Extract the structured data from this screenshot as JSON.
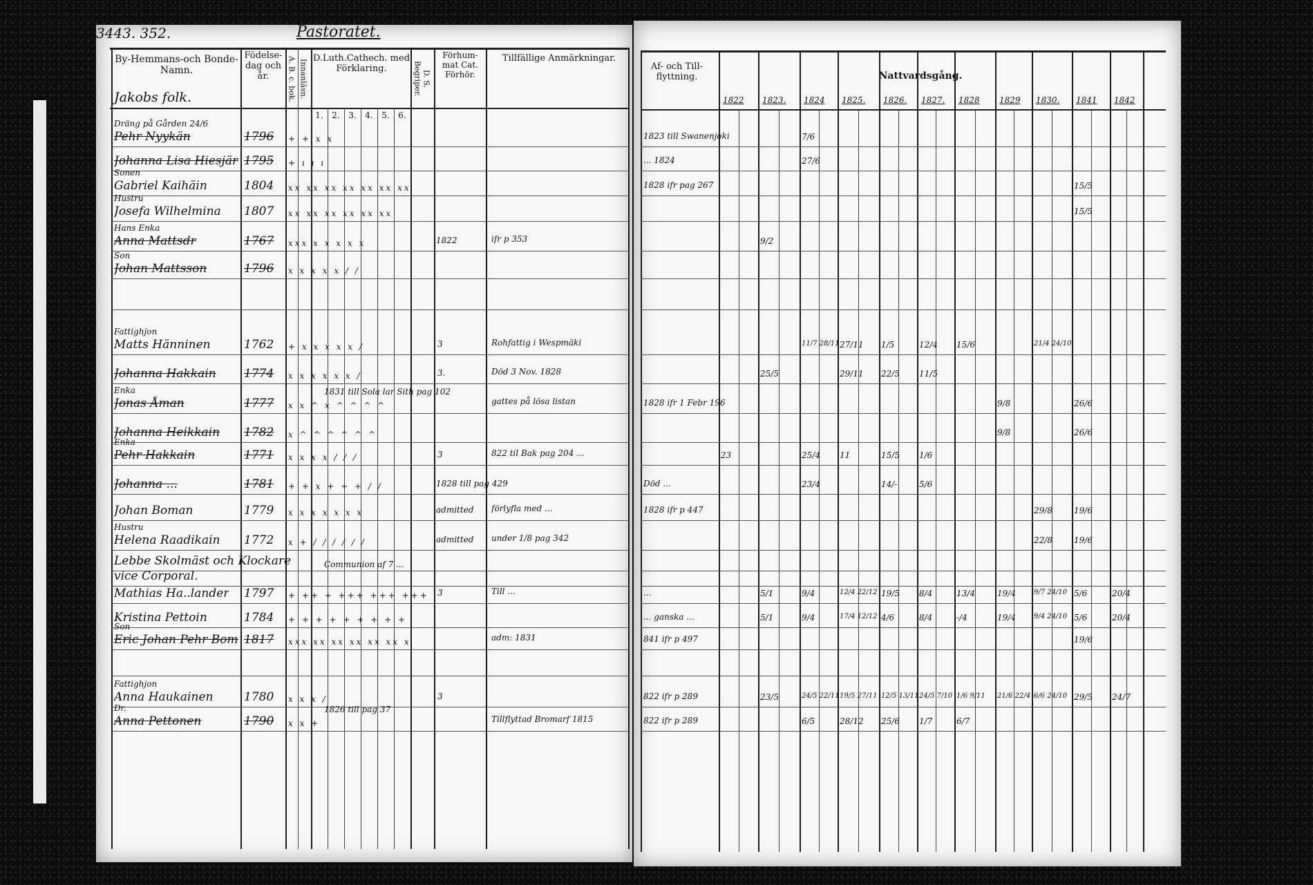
{
  "left_page": {
    "page_number": "3443. 352.",
    "title": "Pastoratet.",
    "headers": {
      "name": "By-Hemmans-och Bonde-Namn.",
      "birth": "Födelse-dag och år.",
      "abc_book": "A. B. c. bok.",
      "reading": "Innanläsn.",
      "catechism": "D.Luth.Cathech. med Förklaring.",
      "catechism_parts": [
        "1.",
        "2.",
        "3.",
        "4.",
        "5.",
        "6."
      ],
      "ds": "D. S. Begriper.",
      "hearing": "Förhum-mat Cat. Förhör.",
      "remarks": "Tillfällige Anmärkningar."
    },
    "household": "Jakobs folk.",
    "rows": [
      {
        "note_above": "Dräng på Gården 24/6",
        "name": "Pehr Nyykän",
        "year": "1796",
        "marks": "+ + x x",
        "struck": true
      },
      {
        "name": "Johanna Lisa Hiesjärvi",
        "year": "1795",
        "marks": "+ ı ı ı",
        "struck": true
      },
      {
        "note_above": "Sonen",
        "name": "Gabriel Kaihäin",
        "year": "1804",
        "marks": "xx xx xx xx xx xx xx"
      },
      {
        "note_above": "Hustru",
        "name": "Josefa Wilhelmina",
        "year": "1807",
        "marks": "xx xx xx xx xx xx"
      },
      {
        "note_above": "Hans Enka",
        "name": "Anna Mattsdr",
        "year": "1767",
        "marks": "xxx x x x x x",
        "hearing": "1822",
        "remark": "ifr p 353",
        "struck": true
      },
      {
        "note_above": "Son",
        "name": "Johan Mattsson",
        "year": "1796",
        "marks": "x x x x x / /",
        "struck": true
      },
      {
        "name": ""
      },
      {
        "note_above": "Fattighjon",
        "name": "Matts Hänninen",
        "year": "1762",
        "marks": "+ x x x x x /",
        "hearing": "3",
        "remark": "Rohfattig i Wespmäki"
      },
      {
        "name": "Johanna Hakkain",
        "year": "1774",
        "marks": "x x x x x x /",
        "hearing": "3.",
        "remark": "Död 3 Nov. 1828",
        "struck": true
      },
      {
        "note_above": "Enka",
        "name": "Jonas Åman",
        "year": "1777",
        "marks": "x x ^ x ^ ^ ^ ^",
        "catechism_note": "1831 till Sola lar Sith pag 102",
        "remark": "gattes på lösa listan",
        "struck": true
      },
      {
        "name": "Johanna Heikkain",
        "year": "1782",
        "marks": "x ^ ^ ^ ^ ^ ^",
        "struck": true
      },
      {
        "note_above": "Enka",
        "name": "Pehr Hakkain",
        "year": "1771",
        "marks": "x x x x / / /",
        "hearing": "3",
        "remark": "822 til Bak pag 204 ...",
        "struck": true
      },
      {
        "name": "Johanna ...",
        "year": "1781",
        "marks": "+ + x + + + / /",
        "hearing": "1828 till pag 429",
        "struck": true
      },
      {
        "name": "Johan Boman",
        "year": "1779",
        "marks": "x x x x x x x",
        "hearing": "admitted",
        "remark": "förlyfla med ..."
      },
      {
        "note_above": "Hustru",
        "name": "Helena Raadikain",
        "year": "1772",
        "marks": "x + / / / / / /",
        "hearing": "admitted",
        "remark": "under 1/8 pag 342"
      },
      {
        "name": "Lebbe Skolmäst och Klockare"
      },
      {
        "name": "vice Corporal.",
        "catechism_note": "Communion af 7 ..."
      },
      {
        "name": "Mathias Ha..lander",
        "year": "1797",
        "marks": "+ ++ + +++ +++ +++",
        "hearing": "3",
        "remark": "Till ..."
      },
      {
        "name": "Kristina Pettoin",
        "year": "1784",
        "marks": "+ + + + + + + + +"
      },
      {
        "note_above": "Son",
        "name": "Eric Johan Pehr Boman",
        "year": "1817",
        "marks": "xxx xx xx xx xx xx x",
        "remark": "adm: 1831",
        "struck": true
      },
      {
        "name": ""
      },
      {
        "note_above": "Fattighjon",
        "name": "Anna Haukainen",
        "year": "1780",
        "marks": "x x x /",
        "hearing": "3"
      },
      {
        "note_above": "Dr.",
        "name": "Anna Pettonen",
        "year": "1790",
        "marks": "x x +",
        "catechism_note": "1826 till pag 37",
        "remark": "Tillflyttad Bromarf 1815",
        "struck": true
      }
    ]
  },
  "right_page": {
    "headers": {
      "moving": "Af- och Till-flyttning.",
      "communion": "Nattvardsgång.",
      "years": [
        "1822",
        "1823.",
        "1824",
        "1825.",
        "1826.",
        "1827.",
        "1828",
        "1829",
        "1830.",
        "1841",
        "1842"
      ]
    },
    "rows": [
      {
        "moving": "1823 till Swanenjoki",
        "communion": [
          "",
          "",
          "7/6",
          "",
          "",
          "",
          "",
          "",
          "",
          "",
          ""
        ]
      },
      {
        "moving": "... 1824",
        "communion": [
          "",
          "",
          "27/6",
          "",
          "",
          "",
          "",
          "",
          "",
          "",
          ""
        ]
      },
      {
        "moving": "1828 ifr pag 267",
        "communion": [
          "",
          "",
          "",
          "",
          "",
          "",
          "",
          "",
          "",
          "15/5",
          ""
        ]
      },
      {
        "moving": "",
        "communion": [
          "",
          "",
          "",
          "",
          "",
          "",
          "",
          "",
          "",
          "15/5",
          ""
        ]
      },
      {
        "moving": "",
        "communion": [
          "",
          "9/2",
          "",
          "",
          "",
          "",
          "",
          "",
          "",
          "",
          ""
        ]
      },
      {
        "moving": "",
        "communion": []
      },
      {
        "moving": "",
        "communion": []
      },
      {
        "moving": "",
        "communion": [
          "",
          "",
          "11/7 28/11",
          "27/11",
          "1/5",
          "12/4",
          "15/6",
          "",
          "21/4 24/10",
          "",
          ""
        ]
      },
      {
        "moving": "",
        "communion": [
          "",
          "25/5",
          "",
          "29/11",
          "22/5",
          "11/5",
          "",
          "",
          "",
          "",
          ""
        ]
      },
      {
        "moving": "1828 ifr 1 Febr 196",
        "communion": [
          "",
          "",
          "",
          "",
          "",
          "",
          "",
          "9/8",
          "",
          "26/6",
          ""
        ]
      },
      {
        "moving": "",
        "communion": [
          "",
          "",
          "",
          "",
          "",
          "",
          "",
          "9/8",
          "",
          "26/6",
          ""
        ]
      },
      {
        "moving": "",
        "communion": [
          "23",
          "",
          "25/4",
          "11",
          "15/5",
          "1/6",
          "",
          "",
          "",
          "",
          ""
        ]
      },
      {
        "moving": "Död ...",
        "communion": [
          "",
          "",
          "23/4",
          "",
          "14/-",
          "5/6",
          "",
          "",
          "",
          "",
          ""
        ]
      },
      {
        "moving": "1828 ifr p 447",
        "communion": [
          "",
          "",
          "",
          "",
          "",
          "",
          "",
          "",
          "29/8",
          "19/6",
          ""
        ]
      },
      {
        "moving": "",
        "communion": [
          "",
          "",
          "",
          "",
          "",
          "",
          "",
          "",
          "22/8",
          "19/6",
          ""
        ]
      },
      {
        "moving": "",
        "communion": []
      },
      {
        "moving": "",
        "communion": []
      },
      {
        "moving": "...",
        "communion": [
          "",
          "5/1",
          "9/4",
          "12/4 22/12",
          "19/5",
          "8/4",
          "13/4",
          "19/4",
          "9/7 24/10",
          "5/6",
          "20/4"
        ]
      },
      {
        "moving": "... ganska ...",
        "communion": [
          "",
          "5/1",
          "9/4",
          "17/4 12/12",
          "4/6",
          "8/4",
          "-/4",
          "19/4",
          "9/4 24/10",
          "5/6",
          "20/4"
        ]
      },
      {
        "moving": "841 ifr p 497",
        "communion": [
          "",
          "",
          "",
          "",
          "",
          "",
          "",
          "",
          "",
          "19/6",
          ""
        ]
      },
      {
        "moving": "",
        "communion": []
      },
      {
        "moving": "822 ifr p 289",
        "communion": [
          "",
          "23/5",
          "24/5 22/11",
          "19/5 27/11",
          "12/5 13/11",
          "24/5 7/10",
          "1/6 9/11",
          "21/6 22/4",
          "6/6 24/10",
          "29/5",
          "24/7"
        ]
      },
      {
        "moving": "822 ifr p 289",
        "communion": [
          "",
          "",
          "6/5",
          "28/12",
          "25/6",
          "1/7",
          "6/7",
          "",
          "",
          "",
          ""
        ]
      }
    ]
  }
}
